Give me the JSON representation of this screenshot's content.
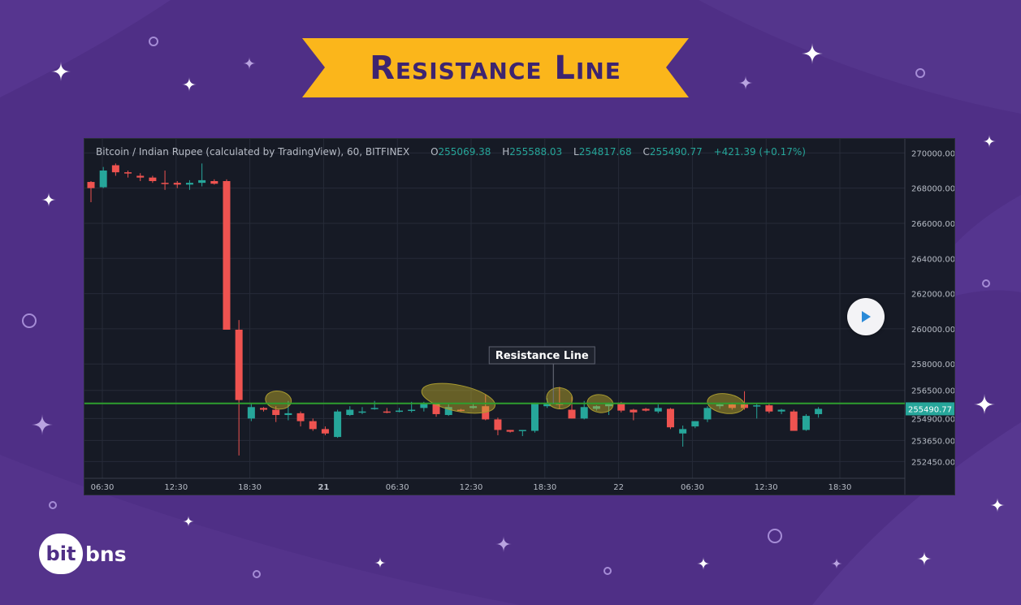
{
  "banner": {
    "title": "Resistance Line",
    "color": "#fbb61b"
  },
  "chart": {
    "legend": {
      "symbol": "Bitcoin / Indian Rupee (calculated by TradingView), 60, BITFINEX",
      "o_key": "O",
      "o_val": "255069.38",
      "h_key": "H",
      "h_val": "255588.03",
      "l_key": "L",
      "l_val": "254817.68",
      "c_key": "C",
      "c_val": "255490.77",
      "change": "+421.39 (+0.17%)"
    },
    "annotation": "Resistance Line",
    "price_tag": "255490.77",
    "colors": {
      "up": "#26a69a",
      "down": "#ef5350",
      "resistance": "#2e9e2e",
      "background": "#161a25"
    }
  },
  "chart_data": {
    "type": "candlestick",
    "ylim": [
      251500,
      270800
    ],
    "y_ticks": [
      "270000.00",
      "268000.00",
      "266000.00",
      "264000.00",
      "262000.00",
      "260000.00",
      "258000.00",
      "256500.00",
      "254900.00",
      "253650.00",
      "252450.00"
    ],
    "y_tick_values": [
      270000,
      268000,
      266000,
      264000,
      262000,
      260000,
      258000,
      256500,
      254900,
      253650,
      252450
    ],
    "x_ticks": [
      "06:30",
      "12:30",
      "18:30",
      "21",
      "06:30",
      "12:30",
      "18:30",
      "22",
      "06:30",
      "12:30",
      "18:30"
    ],
    "x_tick_bold": [
      false,
      false,
      false,
      true,
      false,
      false,
      false,
      false,
      false,
      false,
      false
    ],
    "resistance_level": 255760,
    "candles": [
      [
        268350,
        268400,
        267200,
        268000
      ],
      [
        268050,
        269200,
        268000,
        269000
      ],
      [
        269300,
        269400,
        268700,
        268900
      ],
      [
        268900,
        269000,
        268600,
        268850
      ],
      [
        268700,
        268850,
        268400,
        268600
      ],
      [
        268600,
        268700,
        268300,
        268400
      ],
      [
        268300,
        269000,
        267900,
        268250
      ],
      [
        268300,
        268400,
        268000,
        268200
      ],
      [
        268200,
        268450,
        267900,
        268300
      ],
      [
        268300,
        269400,
        268100,
        268450
      ],
      [
        268400,
        268500,
        268200,
        268250
      ],
      [
        268400,
        268500,
        260000,
        259950
      ],
      [
        259950,
        260500,
        252800,
        255950
      ],
      [
        254900,
        255750,
        254750,
        255550
      ],
      [
        255500,
        255550,
        255300,
        255400
      ],
      [
        255400,
        255600,
        254700,
        255100
      ],
      [
        255100,
        255900,
        254800,
        255200
      ],
      [
        255200,
        255300,
        254450,
        254750
      ],
      [
        254750,
        254900,
        254200,
        254300
      ],
      [
        254300,
        254450,
        253950,
        254050
      ],
      [
        253850,
        255400,
        253800,
        255300
      ],
      [
        255100,
        255600,
        255050,
        255400
      ],
      [
        255250,
        255550,
        255150,
        255300
      ],
      [
        255450,
        255900,
        255400,
        255500
      ],
      [
        255300,
        255500,
        255200,
        255250
      ],
      [
        255300,
        255500,
        255250,
        255350
      ],
      [
        255350,
        255850,
        255250,
        255400
      ],
      [
        255500,
        255850,
        255300,
        255750
      ],
      [
        255750,
        255750,
        255000,
        255150
      ],
      [
        255100,
        255700,
        255050,
        255550
      ],
      [
        255400,
        255450,
        255300,
        255350
      ],
      [
        255500,
        255800,
        255450,
        255600
      ],
      [
        255600,
        256250,
        254800,
        254850
      ],
      [
        254850,
        254950,
        253950,
        254250
      ],
      [
        254250,
        254250,
        254100,
        254150
      ],
      [
        254200,
        254250,
        253900,
        254250
      ],
      [
        254200,
        255800,
        254100,
        255800
      ],
      [
        255600,
        256050,
        255500,
        255750
      ],
      [
        255750,
        256700,
        255450,
        255700
      ],
      [
        255400,
        256150,
        254900,
        254900
      ],
      [
        254900,
        255900,
        254850,
        255550
      ],
      [
        255450,
        255650,
        255350,
        255600
      ],
      [
        255600,
        255800,
        255100,
        255750
      ],
      [
        255800,
        255850,
        255250,
        255350
      ],
      [
        255400,
        255450,
        254800,
        255250
      ],
      [
        255450,
        255500,
        255300,
        255350
      ],
      [
        255300,
        255700,
        255200,
        255500
      ],
      [
        255450,
        255500,
        254300,
        254400
      ],
      [
        254050,
        254500,
        253300,
        254300
      ],
      [
        254450,
        254750,
        254350,
        254750
      ],
      [
        254850,
        255600,
        254700,
        255500
      ],
      [
        255600,
        255750,
        255450,
        255700
      ],
      [
        255700,
        255800,
        255400,
        255500
      ],
      [
        255700,
        256450,
        255400,
        255500
      ],
      [
        255600,
        255750,
        254900,
        255650
      ],
      [
        255650,
        255800,
        255200,
        255300
      ],
      [
        255300,
        255450,
        255150,
        255400
      ],
      [
        255300,
        255400,
        254200,
        254200
      ],
      [
        254250,
        255150,
        254200,
        255050
      ],
      [
        255150,
        255550,
        254950,
        255450
      ]
    ],
    "highlights": [
      {
        "x_index": 15.2,
        "y": 255950,
        "rx": 16,
        "ry": 11
      },
      {
        "x_index": 29.8,
        "y": 256050,
        "rx": 46,
        "ry": 16
      },
      {
        "x_index": 38.0,
        "y": 256050,
        "rx": 16,
        "ry": 13
      },
      {
        "x_index": 41.3,
        "y": 255750,
        "rx": 16,
        "ry": 11
      },
      {
        "x_index": 51.5,
        "y": 255750,
        "rx": 23,
        "ry": 12
      }
    ]
  },
  "logo": {
    "badge": "bit",
    "rest": "bns"
  }
}
